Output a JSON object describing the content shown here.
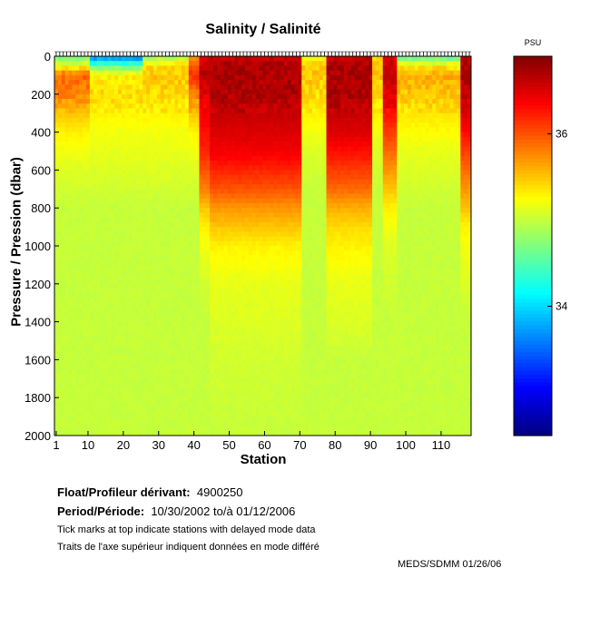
{
  "chart_data": {
    "type": "heatmap",
    "title": "Salinity / Salinité",
    "xlabel": "Station",
    "ylabel": "Pressure / Pression (dbar)",
    "xlim": [
      1,
      118
    ],
    "ylim": [
      2000,
      0
    ],
    "xticks": [
      1,
      10,
      20,
      30,
      40,
      50,
      60,
      70,
      80,
      90,
      100,
      110
    ],
    "yticks": [
      0,
      200,
      400,
      600,
      800,
      1000,
      1200,
      1400,
      1600,
      1800,
      2000
    ],
    "colorbar": {
      "label": "PSU",
      "range": [
        32.5,
        36.9
      ],
      "ticks": [
        34,
        36
      ]
    },
    "depth_levels": [
      0,
      50,
      100,
      200,
      300,
      400,
      500,
      600,
      700,
      800,
      900,
      1000,
      1200,
      1400,
      1600,
      2000
    ],
    "profiles": [
      {
        "stations": [
          1,
          10
        ],
        "salinity": [
          34.6,
          35.2,
          35.9,
          35.8,
          35.5,
          35.3,
          35.2,
          35.1,
          35.05,
          35.0,
          35.0,
          35.0,
          35.0,
          35.0,
          35.0,
          35.0
        ]
      },
      {
        "stations": [
          11,
          25
        ],
        "salinity": [
          33.5,
          34.6,
          35.3,
          35.4,
          35.3,
          35.2,
          35.15,
          35.1,
          35.05,
          35.0,
          35.0,
          35.0,
          35.0,
          35.0,
          35.0,
          35.0
        ]
      },
      {
        "stations": [
          26,
          38
        ],
        "salinity": [
          34.8,
          35.4,
          35.5,
          35.4,
          35.3,
          35.2,
          35.15,
          35.1,
          35.05,
          35.0,
          35.0,
          35.0,
          35.0,
          35.0,
          35.0,
          35.0
        ]
      },
      {
        "stations": [
          39,
          41
        ],
        "salinity": [
          35.6,
          36.0,
          36.2,
          35.8,
          35.5,
          35.3,
          35.2,
          35.1,
          35.05,
          35.0,
          35.0,
          35.0,
          35.0,
          35.0,
          35.0,
          35.0
        ]
      },
      {
        "stations": [
          42,
          44
        ],
        "salinity": [
          36.5,
          36.6,
          36.6,
          36.5,
          36.4,
          36.3,
          36.2,
          36.0,
          35.8,
          35.5,
          35.3,
          35.2,
          35.05,
          35.0,
          35.0,
          35.0
        ]
      },
      {
        "stations": [
          45,
          70
        ],
        "salinity": [
          36.6,
          36.7,
          36.7,
          36.7,
          36.6,
          36.5,
          36.4,
          36.2,
          36.0,
          35.7,
          35.5,
          35.3,
          35.15,
          35.1,
          35.05,
          35.0
        ]
      },
      {
        "stations": [
          71,
          77
        ],
        "salinity": [
          35.2,
          35.5,
          35.5,
          35.4,
          35.3,
          35.2,
          35.1,
          35.05,
          35.0,
          35.0,
          35.0,
          35.0,
          35.0,
          35.0,
          35.0,
          35.0
        ]
      },
      {
        "stations": [
          78,
          90
        ],
        "salinity": [
          36.6,
          36.7,
          36.7,
          36.7,
          36.6,
          36.5,
          36.3,
          36.1,
          35.9,
          35.6,
          35.4,
          35.3,
          35.15,
          35.1,
          35.0,
          35.0
        ]
      },
      {
        "stations": [
          91,
          93
        ],
        "salinity": [
          35.4,
          35.5,
          35.5,
          35.4,
          35.3,
          35.2,
          35.1,
          35.05,
          35.0,
          35.0,
          35.0,
          35.0,
          35.0,
          35.0,
          35.0,
          35.0
        ]
      },
      {
        "stations": [
          94,
          97
        ],
        "salinity": [
          36.4,
          36.6,
          36.6,
          36.5,
          36.3,
          36.1,
          35.9,
          35.7,
          35.5,
          35.3,
          35.2,
          35.1,
          35.05,
          35.0,
          35.0,
          35.0
        ]
      },
      {
        "stations": [
          98,
          115
        ],
        "salinity": [
          34.5,
          35.3,
          35.6,
          35.5,
          35.35,
          35.25,
          35.15,
          35.1,
          35.05,
          35.0,
          35.0,
          35.0,
          35.0,
          35.0,
          35.0,
          35.0
        ]
      },
      {
        "stations": [
          116,
          118
        ],
        "salinity": [
          36.6,
          36.7,
          36.7,
          36.6,
          36.5,
          36.3,
          36.1,
          35.9,
          35.7,
          35.5,
          35.3,
          35.2,
          35.1,
          35.0,
          35.0,
          35.0
        ]
      }
    ]
  },
  "info": {
    "float_label": "Float/Profileur dérivant:",
    "float_id": "4900250",
    "period_label": "Period/Période:",
    "period_value": "10/30/2002  to/à  01/12/2006",
    "note_en": "Tick marks at top indicate stations with delayed mode data",
    "note_fr": "Traits de l'axe supérieur indiquent données en  mode différé",
    "credit": "MEDS/SDMM  01/26/06"
  }
}
